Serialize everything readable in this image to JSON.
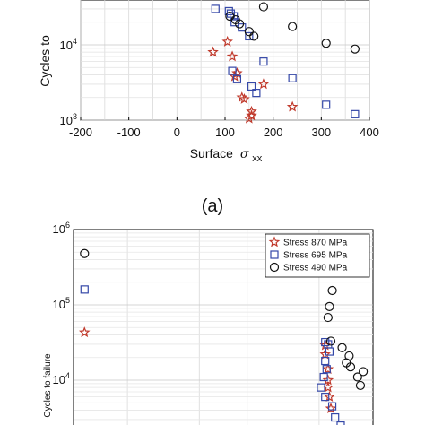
{
  "caption_a": "(a)",
  "chart_data": [
    {
      "type": "scatter",
      "title": "",
      "xlabel": "Surface",
      "xlabel_symbol": "σ",
      "xlabel_subscript": "xx",
      "ylabel": "Cycles to",
      "xlim": [
        -200,
        400
      ],
      "ylim_visible": [
        1000,
        40000
      ],
      "yscale": "log",
      "grid": true,
      "xticks": [
        "-200",
        "-100",
        "0",
        "100",
        "200",
        "300",
        "400"
      ],
      "yticks": [
        {
          "base": "10",
          "exp": "3",
          "value": 1000
        },
        {
          "base": "10",
          "exp": "4",
          "value": 10000
        }
      ],
      "series": [
        {
          "marker": "star",
          "color": "#c0392b",
          "x": [
            75,
            105,
            115,
            125,
            120,
            135,
            140,
            155,
            180,
            240,
            155,
            150
          ],
          "y": [
            8000,
            11000,
            7000,
            4200,
            3800,
            2000,
            1900,
            1300,
            3000,
            1500,
            1150,
            1050
          ]
        },
        {
          "marker": "square",
          "color": "#3548a8",
          "x": [
            80,
            108,
            112,
            118,
            120,
            135,
            150,
            180,
            155,
            165,
            240,
            310,
            370,
            115,
            125
          ],
          "y": [
            30000,
            28000,
            26000,
            24000,
            20000,
            17000,
            13000,
            6000,
            2800,
            2300,
            3600,
            1600,
            1200,
            4500,
            3500
          ]
        },
        {
          "marker": "circle",
          "color": "#111111",
          "x": [
            110,
            122,
            150,
            160,
            180,
            240,
            310,
            370,
            130
          ],
          "y": [
            24000,
            21500,
            15000,
            13000,
            32000,
            17500,
            10500,
            8800,
            19000
          ]
        }
      ]
    },
    {
      "type": "scatter",
      "title": "",
      "xlabel": "",
      "ylabel": "Cycles to failure",
      "yscale": "log",
      "grid": true,
      "legend_position": "top-right",
      "yticks": [
        {
          "base": "10",
          "exp": "6",
          "value": 1000000
        },
        {
          "base": "10",
          "exp": "5",
          "value": 100000
        },
        {
          "base": "10",
          "exp": "4",
          "value": 10000
        }
      ],
      "series": [
        {
          "name": "Stress 870 MPa",
          "marker": "star",
          "color": "#c0392b",
          "xfrac": [
            0.02,
            0.875,
            0.875,
            0.885,
            0.885,
            0.885,
            0.89,
            0.895
          ],
          "y": [
            43000,
            29000,
            22000,
            14000,
            10000,
            8000,
            6000,
            4200
          ]
        },
        {
          "name": "Stress 695 MPa",
          "marker": "square",
          "color": "#3548a8",
          "xfrac": [
            0.02,
            0.875,
            0.885,
            0.89,
            0.875,
            0.88,
            0.87,
            0.86,
            0.875,
            0.9,
            0.91,
            0.93,
            0.96
          ],
          "y": [
            160000,
            32000,
            30000,
            24000,
            18000,
            14000,
            11000,
            8000,
            6000,
            4500,
            3200,
            2500,
            2100
          ]
        },
        {
          "name": "Stress 490 MPa",
          "marker": "circle",
          "color": "#111111",
          "xfrac": [
            0.02,
            0.9,
            0.89,
            0.885,
            0.895,
            0.935,
            0.95,
            0.96,
            0.965,
            0.99,
            1.0,
            1.01
          ],
          "y": [
            480000,
            155000,
            95000,
            68000,
            33000,
            27000,
            17000,
            21000,
            15000,
            11000,
            8500,
            13000
          ]
        }
      ]
    }
  ]
}
